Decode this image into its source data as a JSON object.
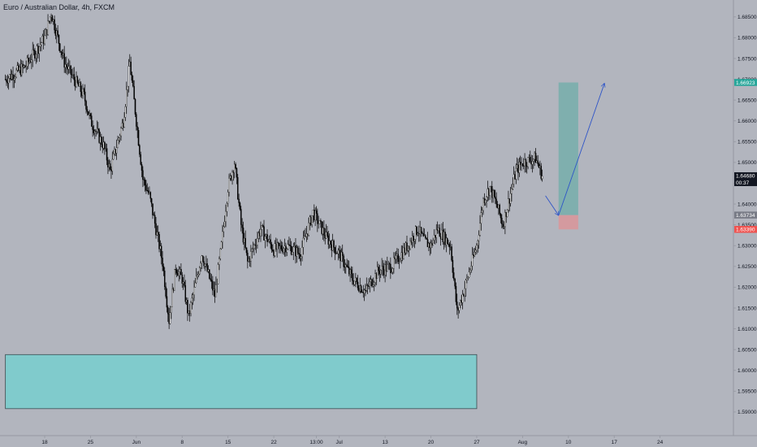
{
  "header": {
    "title": "Euro / Australian Dollar, 4h, FXCM"
  },
  "colors": {
    "background": "#b2b5be",
    "candle": "#000000",
    "demand_zone_fill": "#80cbcc",
    "target_zone_fill": "#7fafae",
    "stop_zone_fill": "#d49a9f",
    "arrow": "#2f55c8",
    "axis_line": "#9598a1",
    "badge_target": "#26a69a",
    "badge_stop": "#ef5350",
    "badge_entry": "#787b86",
    "badge_last": "#131722"
  },
  "chart_data": {
    "type": "candlestick",
    "title": "Euro / Australian Dollar, 4h, FXCM",
    "symbol": "EURAUD",
    "timeframe": "4h",
    "source": "FXCM",
    "ylim": [
      1.585,
      1.6875
    ],
    "y_ticks": [
      "1.68500",
      "1.68000",
      "1.67500",
      "1.67000",
      "1.66500",
      "1.66000",
      "1.65500",
      "1.65000",
      "1.64500",
      "1.64000",
      "1.63500",
      "1.63000",
      "1.62500",
      "1.62000",
      "1.61500",
      "1.61000",
      "1.60500",
      "1.60000",
      "1.59500",
      "1.59000"
    ],
    "x_ticks": [
      "18",
      "25",
      "Jun",
      "8",
      "15",
      "22",
      "13:00",
      "Jul",
      "13",
      "20",
      "27",
      "Aug",
      "10",
      "17",
      "24"
    ],
    "x_tick_days": [
      0,
      7,
      14,
      21,
      28,
      35,
      41.5,
      45,
      52,
      59,
      66,
      73,
      80,
      87,
      94
    ],
    "x_unit": "days since May 18",
    "price_path": [
      [
        -6,
        1.67
      ],
      [
        -3,
        1.673
      ],
      [
        0,
        1.68
      ],
      [
        1,
        1.686
      ],
      [
        3,
        1.674
      ],
      [
        6,
        1.666
      ],
      [
        7,
        1.66
      ],
      [
        9,
        1.654
      ],
      [
        10,
        1.648
      ],
      [
        12,
        1.66
      ],
      [
        13,
        1.674
      ],
      [
        14,
        1.66
      ],
      [
        15,
        1.646
      ],
      [
        16,
        1.642
      ],
      [
        17,
        1.634
      ],
      [
        18,
        1.626
      ],
      [
        19,
        1.612
      ],
      [
        20,
        1.625
      ],
      [
        21,
        1.622
      ],
      [
        22,
        1.613
      ],
      [
        24,
        1.628
      ],
      [
        26,
        1.618
      ],
      [
        27,
        1.63
      ],
      [
        28,
        1.644
      ],
      [
        29,
        1.65
      ],
      [
        30,
        1.635
      ],
      [
        31,
        1.626
      ],
      [
        33,
        1.634
      ],
      [
        35,
        1.629
      ],
      [
        37,
        1.63
      ],
      [
        39,
        1.628
      ],
      [
        41,
        1.638
      ],
      [
        43,
        1.632
      ],
      [
        45,
        1.628
      ],
      [
        47,
        1.622
      ],
      [
        49,
        1.619
      ],
      [
        51,
        1.624
      ],
      [
        53,
        1.625
      ],
      [
        55,
        1.629
      ],
      [
        57,
        1.634
      ],
      [
        58,
        1.631
      ],
      [
        59,
        1.63
      ],
      [
        60,
        1.634
      ],
      [
        62,
        1.63
      ],
      [
        63,
        1.614
      ],
      [
        64,
        1.619
      ],
      [
        66,
        1.63
      ],
      [
        67,
        1.641
      ],
      [
        68,
        1.644
      ],
      [
        69,
        1.64
      ],
      [
        70,
        1.635
      ],
      [
        72,
        1.648
      ],
      [
        73,
        1.65
      ],
      [
        75,
        1.651
      ],
      [
        76,
        1.6468
      ]
    ],
    "current_price": 1.6468,
    "annotations": {
      "demand_zone": {
        "x_from": -6,
        "x_to": 66,
        "y_from": 1.5908,
        "y_to": 1.6038
      },
      "target_zone": {
        "x_from": 78.5,
        "x_to": 81.5,
        "y_from": 1.63734,
        "y_to": 1.66923
      },
      "stop_zone": {
        "x_from": 78.5,
        "x_to": 81.5,
        "y_from": 1.6339,
        "y_to": 1.63734
      },
      "projection_path": [
        [
          76.5,
          1.642
        ],
        [
          78.5,
          1.6373
        ],
        [
          85.5,
          1.669
        ]
      ]
    },
    "price_labels": [
      {
        "name": "target",
        "text": "1.66923",
        "value": 1.66923
      },
      {
        "name": "last",
        "text": "1.64680",
        "value": 1.6468,
        "sub": "00:37"
      },
      {
        "name": "entry",
        "text": "1.63734",
        "value": 1.63734
      },
      {
        "name": "stop",
        "text": "1.63390",
        "value": 1.6339
      }
    ]
  }
}
